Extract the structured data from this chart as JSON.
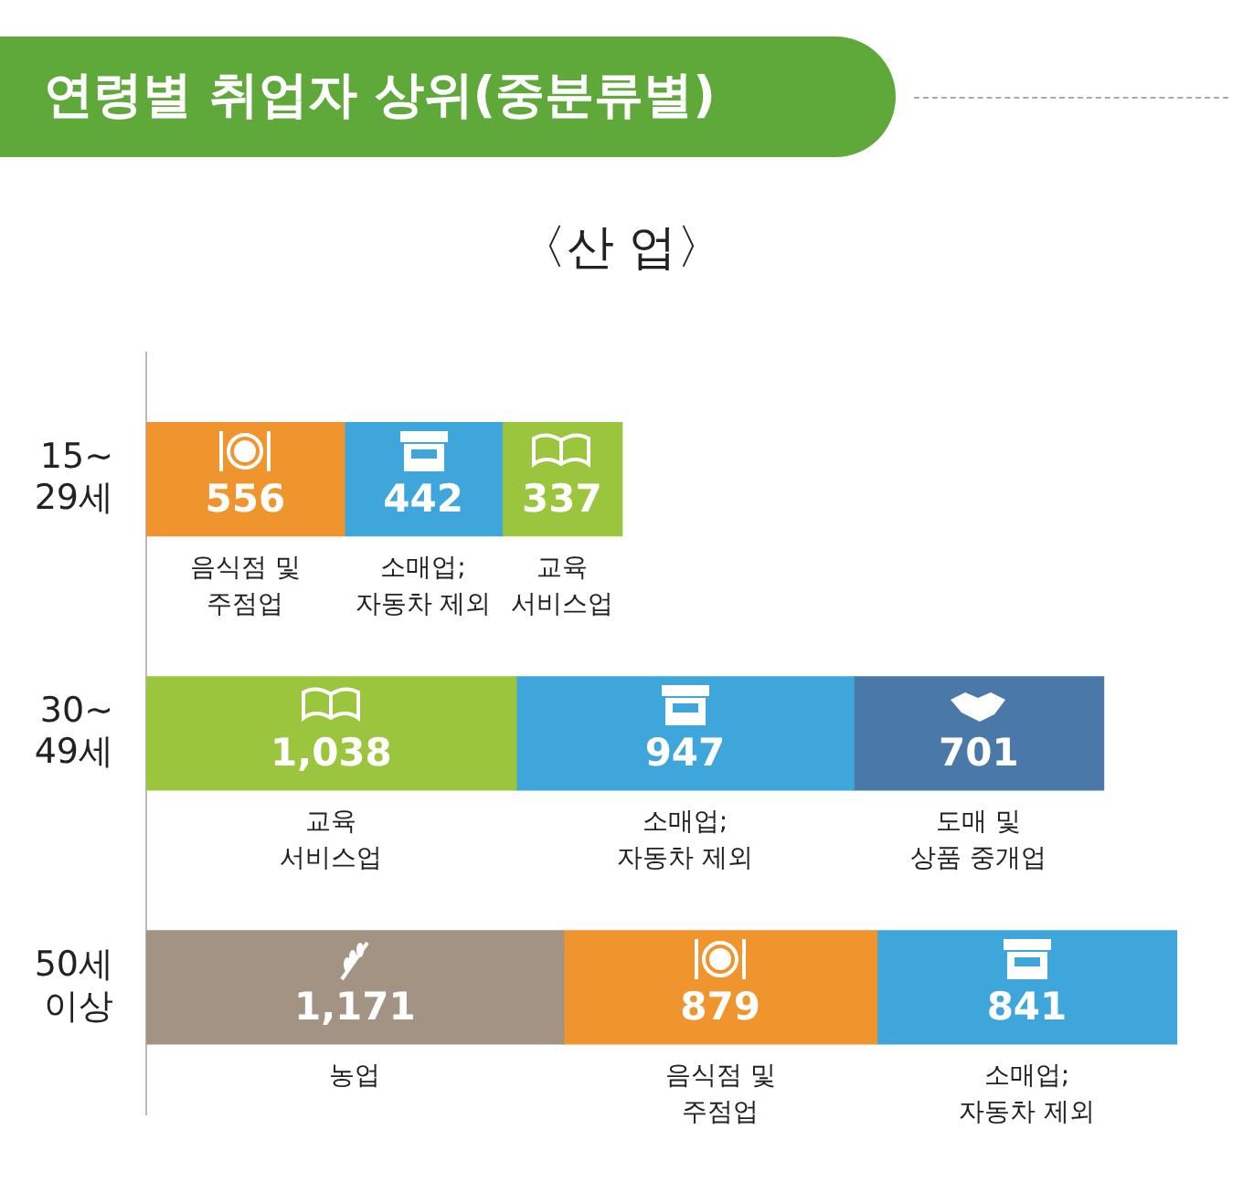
{
  "chart_data": {
    "type": "bar",
    "orientation": "horizontal",
    "stacked": true,
    "title": "연령별 취업자 상위(중분류별)",
    "subtitle": "〈산 업〉",
    "categories": [
      "15~\n29세",
      "30~\n49세",
      "50세\n이상"
    ],
    "series": [
      {
        "values": [
          556,
          1038,
          1171
        ],
        "colors": [
          "#f0952e",
          "#9bc53c",
          "#a39382"
        ],
        "value_labels": [
          "556",
          "1,038",
          "1,171"
        ]
      },
      {
        "values": [
          442,
          947,
          879
        ],
        "colors": [
          "#3fa6dc",
          "#3fa6dc",
          "#f0952e"
        ],
        "value_labels": [
          "442",
          "947",
          "879"
        ]
      },
      {
        "values": [
          337,
          701,
          841
        ],
        "colors": [
          "#9bc53c",
          "#4a78a8",
          "#3fa6dc"
        ],
        "value_labels": [
          "337",
          "701",
          "841"
        ]
      }
    ],
    "annotations": [
      "음식점 및\n주점업",
      "소매업;\n자동차 제외",
      "교육\n서비스업",
      "교육\n서비스업",
      "소매업;\n자동차 제외",
      "도매 및\n상품 중개업",
      "농업",
      "음식점 및\n주점업",
      "소매업;\n자동차 제외"
    ],
    "legend": false
  }
}
